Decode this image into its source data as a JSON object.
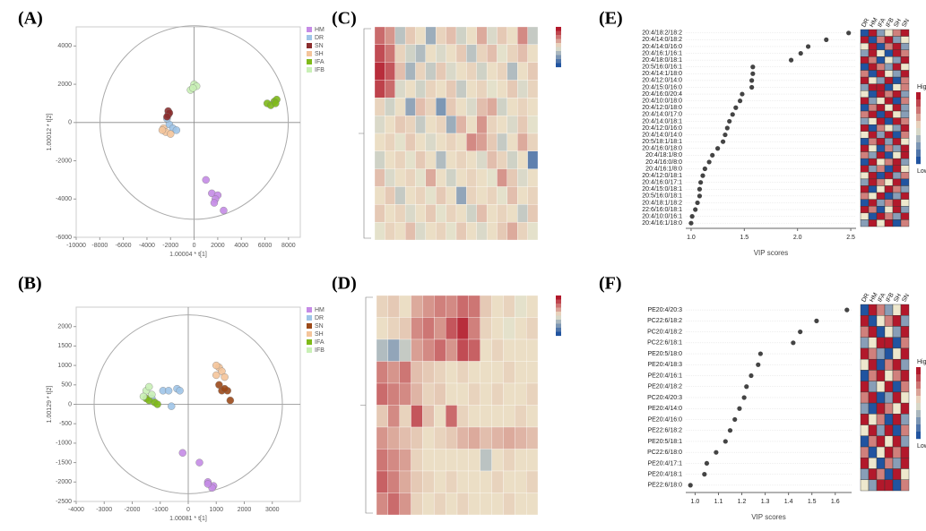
{
  "chart_data": [
    {
      "type": "scatter",
      "panel": "(A)",
      "xlabel": "1.00004 * t[1]",
      "ylabel": "1.00012 * t[2]",
      "xlim": [
        -10000,
        9000
      ],
      "xticks": [
        -10000,
        -8000,
        -6000,
        -4000,
        -2000,
        0,
        2000,
        4000,
        6000,
        8000
      ],
      "ylim": [
        -6000,
        5000
      ],
      "yticks": [
        -6000,
        -4000,
        -2000,
        0,
        2000,
        4000
      ],
      "series": [
        {
          "name": "HM",
          "color": "#c58be6",
          "x": [
            1000,
            1500,
            2000,
            1800,
            2500,
            1700
          ],
          "y": [
            -3000,
            -3700,
            -3800,
            -4000,
            -4600,
            -4200
          ]
        },
        {
          "name": "DR",
          "color": "#9fc5e8",
          "x": [
            -2100,
            -1800,
            -1500,
            -2300
          ],
          "y": [
            -100,
            -300,
            -400,
            200
          ]
        },
        {
          "name": "SN",
          "color": "#8b2e2e",
          "x": [
            -2200,
            -2200,
            -2100,
            -2300
          ],
          "y": [
            400,
            600,
            500,
            300
          ]
        },
        {
          "name": "SH",
          "color": "#f4c59b",
          "x": [
            -2600,
            -2400,
            -2000,
            -2700
          ],
          "y": [
            -300,
            -500,
            -600,
            -400
          ]
        },
        {
          "name": "IFA",
          "color": "#7fba1a",
          "x": [
            6200,
            6800,
            7000,
            6500,
            6900
          ],
          "y": [
            1000,
            1100,
            1200,
            900,
            1000
          ]
        },
        {
          "name": "IFB",
          "color": "#c9f0b6",
          "x": [
            -300,
            0,
            200,
            -100
          ],
          "y": [
            1700,
            2000,
            1900,
            1800
          ]
        }
      ]
    },
    {
      "type": "scatter",
      "panel": "(B)",
      "xlabel": "1.00081 * t[1]",
      "ylabel": "1.00129 * t[2]",
      "xlim": [
        -4000,
        4000
      ],
      "xticks": [
        -4000,
        -3000,
        -2000,
        -1000,
        0,
        1000,
        2000,
        3000
      ],
      "ylim": [
        -2500,
        2500
      ],
      "yticks": [
        -2500,
        -2000,
        -1500,
        -1000,
        -500,
        0,
        500,
        1000,
        1500,
        2000
      ],
      "series": [
        {
          "name": "HM",
          "color": "#c58be6",
          "x": [
            -200,
            400,
            700,
            900,
            850,
            700
          ],
          "y": [
            -1250,
            -1500,
            -2000,
            -2100,
            -2150,
            -2050
          ]
        },
        {
          "name": "DR",
          "color": "#9fc5e8",
          "x": [
            -900,
            -700,
            -600,
            -400,
            -300,
            -1300
          ],
          "y": [
            350,
            350,
            -50,
            400,
            350,
            150
          ]
        },
        {
          "name": "SN",
          "color": "#9c4a1a",
          "x": [
            1100,
            1200,
            1400,
            1500,
            1300
          ],
          "y": [
            500,
            350,
            350,
            100,
            400
          ]
        },
        {
          "name": "SH",
          "color": "#f4c59b",
          "x": [
            1000,
            1100,
            1200,
            1300,
            1000
          ],
          "y": [
            750,
            950,
            850,
            700,
            1000
          ]
        },
        {
          "name": "IFA",
          "color": "#7fba1a",
          "x": [
            -1500,
            -1400,
            -1200,
            -1100
          ],
          "y": [
            150,
            100,
            50,
            0
          ]
        },
        {
          "name": "IFB",
          "color": "#c9f0b6",
          "x": [
            -1500,
            -1400,
            -1600,
            -1300
          ],
          "y": [
            350,
            450,
            200,
            250
          ]
        }
      ]
    },
    {
      "type": "heatmap",
      "panel": "(C)",
      "matrix": [
        [
          1.2,
          0.8,
          -0.5,
          0.3,
          0.1,
          -0.8,
          0.2,
          0.4,
          -0.3,
          0.1,
          0.6,
          -0.2,
          0.3,
          0.1,
          0.9,
          -0.4
        ],
        [
          1.5,
          1.1,
          0.2,
          -0.3,
          -0.6,
          0.1,
          -0.2,
          0.1,
          0.3,
          -0.5,
          0.2,
          0.4,
          -0.1,
          0.2,
          0.4,
          0.1
        ],
        [
          1.8,
          1.4,
          0.4,
          -0.7,
          0.2,
          -0.4,
          0.3,
          -0.2,
          0.1,
          0.2,
          -0.3,
          0.1,
          0.2,
          -0.6,
          0.1,
          0.3
        ],
        [
          1.6,
          1.2,
          -0.2,
          0.1,
          -0.3,
          0.2,
          0.1,
          0.3,
          -0.4,
          0.1,
          0.2,
          -0.1,
          0.1,
          0.3,
          -0.2,
          0.2
        ],
        [
          0.2,
          -0.3,
          0.1,
          -0.9,
          0.4,
          0.2,
          -1.1,
          0.3,
          0.1,
          -0.2,
          0.4,
          0.6,
          -0.3,
          0.1,
          0.2,
          0.1
        ],
        [
          -0.2,
          0.1,
          0.3,
          0.2,
          -0.4,
          0.1,
          0.2,
          -0.8,
          0.5,
          0.1,
          0.8,
          0.2,
          0.1,
          -0.2,
          0.3,
          -0.1
        ],
        [
          0.1,
          0.2,
          -0.1,
          0.3,
          0.1,
          -0.2,
          0.1,
          0.2,
          0.1,
          0.9,
          0.7,
          0.3,
          -0.4,
          0.1,
          0.6,
          0.2
        ],
        [
          -0.3,
          0.1,
          0.2,
          -0.1,
          0.3,
          0.1,
          -0.6,
          0.1,
          0.2,
          0.1,
          -0.2,
          0.4,
          0.2,
          -0.3,
          0.1,
          -1.4
        ],
        [
          0.4,
          -0.2,
          0.1,
          0.2,
          -0.1,
          0.6,
          0.1,
          -0.3,
          0.1,
          0.2,
          0.1,
          -0.1,
          0.8,
          0.3,
          -0.2,
          0.1
        ],
        [
          0.1,
          0.3,
          -0.4,
          0.1,
          0.2,
          -0.1,
          0.3,
          0.1,
          -0.9,
          0.2,
          0.1,
          0.2,
          -0.1,
          0.4,
          0.1,
          0.2
        ],
        [
          0.3,
          0.1,
          0.2,
          -0.2,
          0.1,
          0.3,
          -0.1,
          0.2,
          0.1,
          -0.3,
          0.4,
          0.1,
          0.2,
          0.1,
          -0.4,
          0.3
        ],
        [
          -0.1,
          0.2,
          0.1,
          0.4,
          -0.2,
          0.1,
          0.2,
          -0.1,
          0.3,
          0.1,
          -0.2,
          0.1,
          0.3,
          0.6,
          0.2,
          -0.1
        ]
      ]
    },
    {
      "type": "heatmap",
      "panel": "(D)",
      "matrix": [
        [
          0.2,
          0.3,
          0.1,
          0.6,
          0.8,
          1.0,
          0.9,
          1.2,
          1.1,
          0.3,
          0.1,
          0.2,
          -0.1,
          0.1
        ],
        [
          0.1,
          0.2,
          0.3,
          0.9,
          1.1,
          0.8,
          1.4,
          1.8,
          1.0,
          0.2,
          0.1,
          -0.1,
          0.1,
          0.2
        ],
        [
          -0.6,
          -0.9,
          -0.4,
          0.7,
          0.9,
          1.2,
          0.8,
          1.5,
          1.3,
          0.1,
          0.2,
          0.1,
          0.1,
          0.1
        ],
        [
          1.0,
          0.8,
          1.1,
          0.4,
          0.3,
          0.2,
          0.1,
          0.2,
          0.1,
          0.1,
          0.1,
          0.2,
          0.1,
          0.1
        ],
        [
          1.2,
          1.0,
          0.9,
          0.5,
          0.2,
          0.3,
          0.1,
          0.1,
          0.2,
          0.1,
          0.2,
          0.1,
          0.1,
          0.2
        ],
        [
          0.3,
          0.9,
          0.2,
          1.4,
          0.4,
          0.1,
          1.2,
          0.2,
          0.1,
          0.1,
          0.1,
          0.1,
          0.2,
          0.1
        ],
        [
          0.8,
          0.6,
          0.4,
          0.3,
          0.1,
          0.2,
          0.3,
          0.5,
          0.6,
          0.4,
          0.5,
          0.6,
          0.5,
          0.4
        ],
        [
          1.1,
          0.9,
          0.7,
          0.2,
          0.1,
          0.1,
          0.1,
          0.1,
          0.1,
          -0.5,
          0.1,
          0.2,
          0.1,
          0.1
        ],
        [
          1.3,
          1.0,
          0.6,
          0.3,
          0.2,
          0.1,
          0.2,
          0.1,
          0.1,
          0.1,
          0.2,
          0.1,
          0.1,
          0.2
        ],
        [
          0.9,
          1.2,
          0.8,
          0.2,
          0.1,
          0.2,
          0.1,
          0.2,
          0.1,
          0.1,
          0.1,
          0.2,
          0.1,
          0.1
        ]
      ]
    },
    {
      "type": "dot",
      "panel": "(E)",
      "xlabel": "VIP scores",
      "xlim": [
        0.95,
        2.55
      ],
      "xticks": [
        {
          "value": 1,
          "label": "1.0"
        },
        {
          "value": 1.5,
          "label": "1.5"
        },
        {
          "value": 2,
          "label": "2.0"
        },
        {
          "value": 2.5,
          "label": "2.5"
        }
      ],
      "categories": [
        "20:4/18:2/18:2",
        "20:4/14:0/18:2",
        "20:4/14:0/16:0",
        "20:4/16:1/16:1",
        "20:4/18:0/18:1",
        "20:5/16:0/16:1",
        "20:4/14:1/18:0",
        "20:4/12:0/14:0",
        "20:4/15:0/16:0",
        "20:4/16:0/20:4",
        "20:4/10:0/18:0",
        "20:4/12:0/18:0",
        "20:4/14:0/17:0",
        "20:4/14:0/18:1",
        "20:4/12:0/16:0",
        "20:4/14:0/14:0",
        "20:5/18:1/18:1",
        "20:4/16:0/18:0",
        "20:4/18:1/8:0",
        "20:4/16:0/8:0",
        "20:4/16:1/8:0",
        "20:4/12:0/18:1",
        "20:4/16:0/17:1",
        "20:4/15:0/18:1",
        "20:5/16:0/18:1",
        "20:4/18:1/18:2",
        "22:6/16:0/18:1",
        "20:4/10:0/16:1",
        "20:4/16:1/18:0"
      ],
      "values": [
        2.48,
        2.27,
        2.1,
        2.03,
        1.94,
        1.58,
        1.58,
        1.57,
        1.57,
        1.48,
        1.46,
        1.42,
        1.39,
        1.36,
        1.34,
        1.32,
        1.3,
        1.25,
        1.2,
        1.17,
        1.13,
        1.11,
        1.09,
        1.08,
        1.08,
        1.06,
        1.04,
        1.01,
        1.0
      ],
      "columns": [
        "DR",
        "HM",
        "IFA",
        "IFB",
        "SH",
        "SN"
      ],
      "legend": [
        "High",
        "Low"
      ],
      "matrix": [
        [
          -1,
          1,
          -0.5,
          0,
          0.5,
          1
        ],
        [
          1,
          -1,
          0.5,
          1,
          -0.5,
          0
        ],
        [
          0,
          1,
          -1,
          0.5,
          1,
          -0.5
        ],
        [
          -0.5,
          1,
          0,
          -1,
          1,
          0.5
        ],
        [
          1,
          0.5,
          -1,
          0,
          -0.5,
          1
        ],
        [
          -1,
          1,
          0.5,
          -0.5,
          1,
          0
        ],
        [
          0.5,
          -1,
          1,
          0,
          -0.5,
          1
        ],
        [
          1,
          0,
          -0.5,
          1,
          -1,
          0.5
        ],
        [
          -0.5,
          1,
          1,
          -1,
          0,
          0.5
        ],
        [
          0,
          -1,
          1,
          0.5,
          1,
          -0.5
        ],
        [
          1,
          -0.5,
          0,
          1,
          -1,
          0.5
        ],
        [
          -1,
          0.5,
          1,
          0,
          1,
          -0.5
        ],
        [
          0.5,
          1,
          -1,
          1,
          0,
          -0.5
        ],
        [
          -0.5,
          0,
          1,
          -1,
          1,
          0.5
        ],
        [
          1,
          -1,
          0.5,
          0,
          -0.5,
          1
        ],
        [
          0,
          1,
          -0.5,
          1,
          -1,
          0.5
        ],
        [
          -1,
          0.5,
          1,
          -0.5,
          1,
          0
        ],
        [
          1,
          0,
          -1,
          0.5,
          -0.5,
          1
        ],
        [
          0.5,
          -0.5,
          1,
          -1,
          0,
          1
        ],
        [
          -1,
          1,
          0,
          0.5,
          1,
          -0.5
        ],
        [
          1,
          -0.5,
          0.5,
          -1,
          1,
          0
        ],
        [
          0,
          1,
          -1,
          1,
          -0.5,
          0.5
        ],
        [
          -0.5,
          1,
          0.5,
          0,
          1,
          -1
        ],
        [
          1,
          -1,
          0,
          1,
          0.5,
          -0.5
        ],
        [
          0.5,
          0,
          1,
          -1,
          -0.5,
          1
        ],
        [
          -1,
          1,
          -0.5,
          0.5,
          1,
          0
        ],
        [
          1,
          0.5,
          -1,
          0,
          1,
          -0.5
        ],
        [
          0,
          -1,
          1,
          0.5,
          -0.5,
          1
        ],
        [
          -0.5,
          1,
          0,
          1,
          -1,
          0.5
        ]
      ]
    },
    {
      "type": "dot",
      "panel": "(F)",
      "xlabel": "VIP scores",
      "xlim": [
        0.96,
        1.67
      ],
      "xticks": [
        {
          "value": 1,
          "label": "1.0"
        },
        {
          "value": 1.1,
          "label": "1.1"
        },
        {
          "value": 1.2,
          "label": "1.2"
        },
        {
          "value": 1.3,
          "label": "1.3"
        },
        {
          "value": 1.4,
          "label": "1.4"
        },
        {
          "value": 1.5,
          "label": "1.5"
        },
        {
          "value": 1.6,
          "label": "1.6"
        }
      ],
      "categories": [
        "PE20:4/20:3",
        "PC22:6/18:2",
        "PC20:4/18:2",
        "PC22:6/18:1",
        "PE20:5/18:0",
        "PE20:4/18:3",
        "PE20:4/16:1",
        "PE20:4/18:2",
        "PC20:4/20:3",
        "PE20:4/14:0",
        "PE20:4/16:0",
        "PE22:6/18:2",
        "PE20:5/18:1",
        "PC22:6/18:0",
        "PE20:4/17:1",
        "PE20:4/18:1",
        "PE22:6/18:0"
      ],
      "values": [
        1.65,
        1.52,
        1.45,
        1.42,
        1.28,
        1.27,
        1.24,
        1.22,
        1.21,
        1.19,
        1.17,
        1.15,
        1.13,
        1.09,
        1.05,
        1.04,
        0.98
      ],
      "columns": [
        "DR",
        "HM",
        "IFA",
        "IFB",
        "SH",
        "SN"
      ],
      "legend": [
        "High",
        "Low"
      ],
      "matrix": [
        [
          -1,
          1,
          0.5,
          -0.5,
          0,
          1
        ],
        [
          1,
          -1,
          0,
          0.5,
          1,
          -0.5
        ],
        [
          0.5,
          1,
          -1,
          0,
          -0.5,
          1
        ],
        [
          -0.5,
          0,
          1,
          1,
          -1,
          0.5
        ],
        [
          1,
          0.5,
          -0.5,
          -1,
          0,
          1
        ],
        [
          0,
          1,
          -1,
          0.5,
          1,
          -0.5
        ],
        [
          -1,
          0.5,
          1,
          0,
          0.5,
          1
        ],
        [
          1,
          -0.5,
          0,
          1,
          -1,
          0.5
        ],
        [
          0.5,
          1,
          -1,
          -0.5,
          1,
          0
        ],
        [
          -0.5,
          -1,
          1,
          0.5,
          0,
          1
        ],
        [
          1,
          0,
          0.5,
          -1,
          1,
          -0.5
        ],
        [
          0,
          1,
          -0.5,
          1,
          -1,
          0.5
        ],
        [
          -1,
          0.5,
          1,
          0,
          1,
          -0.5
        ],
        [
          0.5,
          -1,
          0,
          1,
          0.5,
          1
        ],
        [
          1,
          0,
          -1,
          0.5,
          -0.5,
          1
        ],
        [
          -0.5,
          1,
          0.5,
          -1,
          1,
          0
        ],
        [
          0,
          -0.5,
          1,
          1,
          -1,
          0.5
        ]
      ]
    }
  ]
}
